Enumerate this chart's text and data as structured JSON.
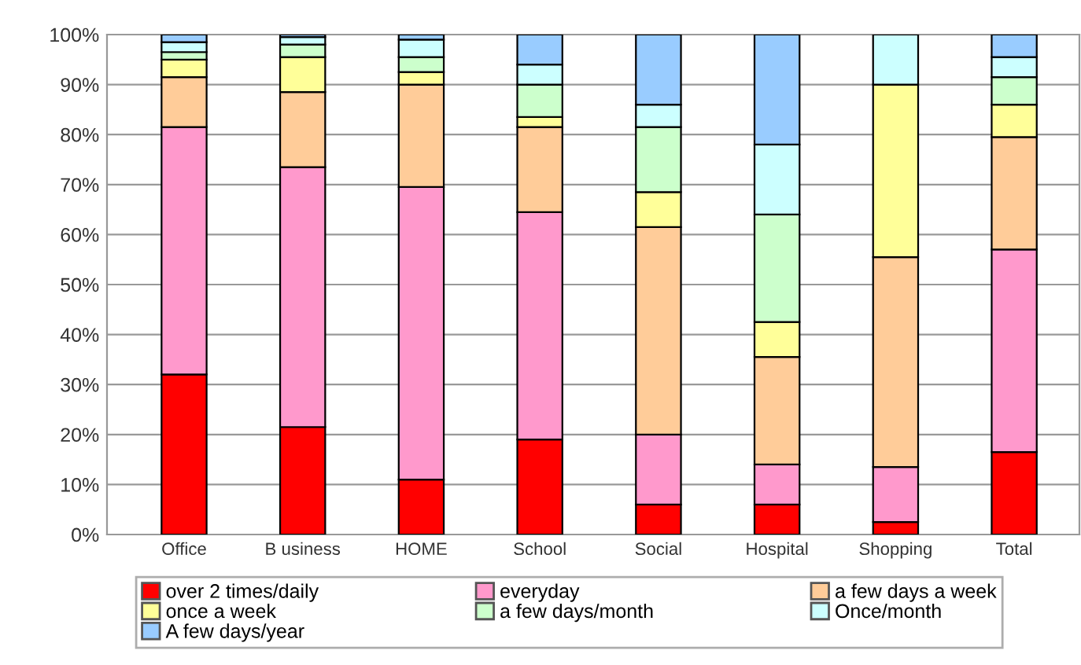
{
  "chart_data": {
    "type": "bar",
    "stacked": true,
    "categories": [
      "Office",
      "B usiness",
      "HOME",
      "School",
      "Social",
      "Hospital",
      "Shopping",
      "Total"
    ],
    "series": [
      {
        "name": "over 2 times/daily",
        "color": "#ff0000",
        "values": [
          32,
          21.5,
          11,
          19,
          6,
          6,
          2.5,
          16.5
        ]
      },
      {
        "name": "everyday",
        "color": "#ff99cc",
        "values": [
          49.5,
          52,
          58.5,
          45.5,
          14,
          8,
          11,
          40.5
        ]
      },
      {
        "name": "a few days a week",
        "color": "#ffcc99",
        "values": [
          10,
          15,
          20.5,
          17,
          41.5,
          21.5,
          42,
          22.5
        ]
      },
      {
        "name": "once a week",
        "color": "#ffff99",
        "values": [
          3.5,
          7,
          2.5,
          2,
          7,
          7,
          34.5,
          6.5
        ]
      },
      {
        "name": "a few days/month",
        "color": "#ccffcc",
        "values": [
          1.5,
          2.5,
          3,
          6.5,
          13,
          21.5,
          null,
          5.5
        ]
      },
      {
        "name": "Once/month",
        "color": "#ccffff",
        "values": [
          2,
          1.5,
          3.5,
          4,
          4.5,
          14,
          10,
          4
        ]
      },
      {
        "name": "A few days/year",
        "color": "#99ccff",
        "values": [
          1.5,
          0.5,
          1,
          6,
          14,
          22,
          null,
          4.5
        ]
      }
    ],
    "ylim": [
      0,
      100
    ],
    "yticks": [
      {
        "value": 0,
        "label": "0%"
      },
      {
        "value": 10,
        "label": "10%"
      },
      {
        "value": 20,
        "label": "20%"
      },
      {
        "value": 30,
        "label": "30%"
      },
      {
        "value": 40,
        "label": "40%"
      },
      {
        "value": 50,
        "label": "50%"
      },
      {
        "value": 60,
        "label": "60%"
      },
      {
        "value": 70,
        "label": "70%"
      },
      {
        "value": 80,
        "label": "80%"
      },
      {
        "value": 90,
        "label": "90%"
      },
      {
        "value": 100,
        "label": "100%"
      }
    ],
    "grid": "y",
    "legend": "bottom"
  }
}
